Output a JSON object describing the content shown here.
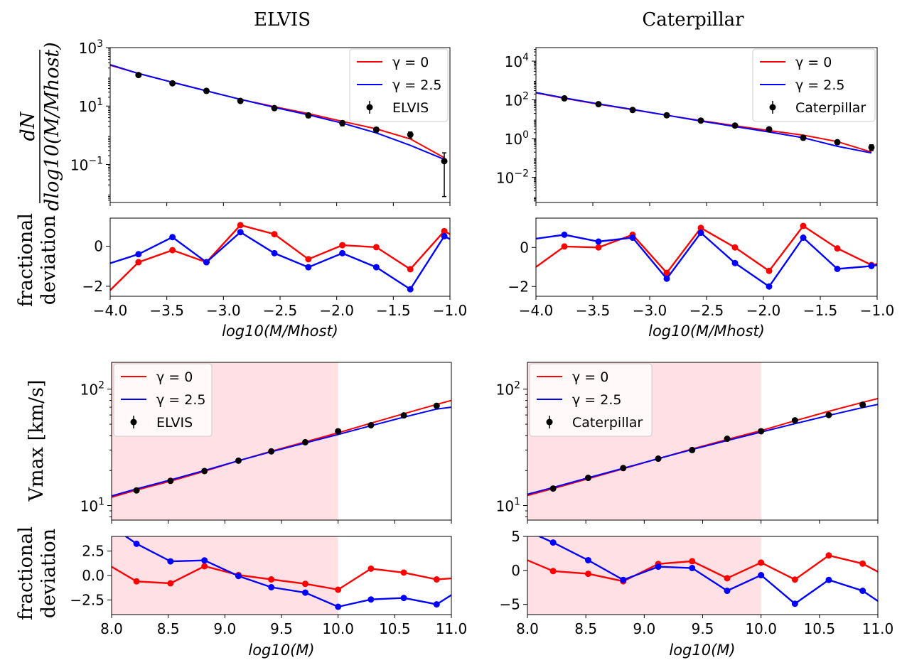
{
  "titles": {
    "left": "ELVIS",
    "right": "Caterpillar"
  },
  "ylabels": {
    "hmf_num": "dN",
    "hmf_den": "dlog10(M/Mhost)",
    "frac_top": "fractional",
    "frac_bottom": "deviation",
    "vmax": "Vmax [km/s]"
  },
  "xlabels": {
    "hmf": "log10(M/Mhost)",
    "vmax": "log10(M)"
  },
  "colors": {
    "gamma0": "#ff0000",
    "gamma25": "#0000ff",
    "data": "#000000",
    "shade": "#ffe0e4"
  },
  "chart_data": [
    {
      "id": "elvis_hmf",
      "type": "line",
      "yscale": "log",
      "xlim": [
        -4.0,
        -1.0
      ],
      "ylim": [
        0.005,
        1000
      ],
      "yticks": [
        "10^3",
        "10^1",
        "10^-1"
      ],
      "legend": "top-right",
      "legend_entries": [
        "γ = 0",
        "γ = 2.5",
        "ELVIS"
      ],
      "x": [
        -4.0,
        -3.75,
        -3.45,
        -3.15,
        -2.85,
        -2.55,
        -2.25,
        -1.95,
        -1.65,
        -1.35,
        -1.05
      ],
      "series": [
        {
          "name": "γ = 0",
          "values": [
            250,
            130,
            65,
            33,
            17,
            9.5,
            5.5,
            3.0,
            1.65,
            0.75,
            0.17
          ]
        },
        {
          "name": "γ = 2.5",
          "values": [
            260,
            130,
            65,
            33,
            17,
            9.0,
            5.0,
            2.6,
            1.2,
            0.45,
            0.15
          ]
        }
      ],
      "points": {
        "name": "ELVIS",
        "x": [
          -3.75,
          -3.45,
          -3.15,
          -2.85,
          -2.55,
          -2.25,
          -1.95,
          -1.65,
          -1.35,
          -1.05
        ],
        "y": [
          115,
          60,
          33,
          15,
          8.5,
          4.8,
          2.6,
          1.55,
          1.05,
          0.13
        ],
        "err_lo": [
          100,
          52,
          28,
          13,
          7.3,
          4.0,
          2.1,
          1.25,
          0.8,
          0.008
        ],
        "err_hi": [
          130,
          68,
          38,
          17,
          9.7,
          5.6,
          3.1,
          1.85,
          1.3,
          0.25
        ]
      }
    },
    {
      "id": "cater_hmf",
      "type": "line",
      "yscale": "log",
      "xlim": [
        -4.0,
        -1.0
      ],
      "ylim": [
        0.0005,
        50000
      ],
      "yticks": [
        "10^4",
        "10^2",
        "10^0",
        "10^-2"
      ],
      "legend": "top-right",
      "legend_entries": [
        "γ = 0",
        "γ = 2.5",
        "Caterpillar"
      ],
      "x": [
        -4.0,
        -3.75,
        -3.45,
        -3.15,
        -2.85,
        -2.55,
        -2.25,
        -1.95,
        -1.65,
        -1.35,
        -1.05
      ],
      "series": [
        {
          "name": "γ = 0",
          "values": [
            230,
            120,
            60,
            31,
            16,
            8.5,
            4.6,
            2.6,
            1.5,
            0.7,
            0.2
          ]
        },
        {
          "name": "γ = 2.5",
          "values": [
            240,
            125,
            62,
            32,
            16,
            8.0,
            4.2,
            2.2,
            1.1,
            0.4,
            0.18
          ]
        }
      ],
      "points": {
        "name": "Caterpillar",
        "x": [
          -3.75,
          -3.45,
          -3.15,
          -2.85,
          -2.55,
          -2.25,
          -1.95,
          -1.65,
          -1.35,
          -1.05
        ],
        "y": [
          120,
          60,
          30,
          16,
          8.5,
          4.7,
          3.0,
          1.1,
          0.65,
          0.35
        ],
        "err_lo": [
          110,
          55,
          27,
          14.5,
          7.6,
          4.1,
          2.5,
          0.85,
          0.5,
          0.24
        ],
        "err_hi": [
          130,
          66,
          33,
          17.5,
          9.4,
          5.3,
          3.5,
          1.35,
          0.8,
          0.48
        ]
      }
    },
    {
      "id": "elvis_hmf_dev",
      "type": "line",
      "yscale": "linear",
      "xlim": [
        -4.0,
        -1.0
      ],
      "ylim": [
        -2.5,
        1.4
      ],
      "yticks": [
        0,
        -2
      ],
      "xticks": [
        "−4.0",
        "−3.5",
        "−3.0",
        "−2.5",
        "−2.0",
        "−1.5",
        "−1.0"
      ],
      "xtick_values": [
        -4.0,
        -3.5,
        -3.0,
        -2.5,
        -2.0,
        -1.5,
        -1.0
      ],
      "x": [
        -4.0,
        -3.75,
        -3.45,
        -3.15,
        -2.85,
        -2.55,
        -2.25,
        -1.95,
        -1.65,
        -1.35,
        -1.05,
        -1.0
      ],
      "series": [
        {
          "name": "γ = 0",
          "values": [
            -2.2,
            -0.8,
            -0.2,
            -0.8,
            1.05,
            0.6,
            -0.65,
            0.05,
            -0.05,
            -1.15,
            0.75,
            0.6
          ],
          "markers": [
            false,
            true,
            true,
            true,
            true,
            true,
            true,
            true,
            true,
            true,
            true,
            false
          ]
        },
        {
          "name": "γ = 2.5",
          "values": [
            -0.85,
            -0.4,
            0.45,
            -0.8,
            0.7,
            -0.35,
            -1.05,
            -0.35,
            -1.05,
            -2.15,
            0.5,
            0.35
          ],
          "markers": [
            false,
            true,
            true,
            true,
            true,
            true,
            true,
            true,
            true,
            true,
            true,
            false
          ]
        }
      ]
    },
    {
      "id": "cater_hmf_dev",
      "type": "line",
      "yscale": "linear",
      "xlim": [
        -4.0,
        -1.0
      ],
      "ylim": [
        -2.5,
        1.5
      ],
      "yticks": [
        0,
        -2
      ],
      "xticks": [
        "−4.0",
        "−3.5",
        "−3.0",
        "−2.5",
        "−2.0",
        "−1.5",
        "−1.0"
      ],
      "xtick_values": [
        -4.0,
        -3.5,
        -3.0,
        -2.5,
        -2.0,
        -1.5,
        -1.0
      ],
      "x": [
        -4.0,
        -3.75,
        -3.45,
        -3.15,
        -2.85,
        -2.55,
        -2.25,
        -1.95,
        -1.65,
        -1.35,
        -1.05,
        -1.0
      ],
      "series": [
        {
          "name": "γ = 0",
          "values": [
            -1.0,
            0.05,
            0.0,
            0.65,
            -1.3,
            1.0,
            0.0,
            -1.2,
            1.1,
            -0.05,
            -0.9,
            -0.85
          ],
          "markers": [
            false,
            true,
            true,
            true,
            true,
            true,
            true,
            true,
            true,
            true,
            true,
            false
          ]
        },
        {
          "name": "γ = 2.5",
          "values": [
            0.45,
            0.65,
            0.3,
            0.5,
            -1.6,
            0.75,
            -0.8,
            -2.0,
            0.5,
            -1.1,
            -0.95,
            -0.9
          ],
          "markers": [
            false,
            true,
            true,
            true,
            true,
            true,
            true,
            true,
            true,
            true,
            true,
            false
          ]
        }
      ]
    },
    {
      "id": "elvis_vmax",
      "type": "line",
      "yscale": "log",
      "xlim": [
        8.0,
        11.0
      ],
      "ylim": [
        7.5,
        170
      ],
      "yticks": [
        "10^2",
        "10^1"
      ],
      "shade_x": [
        8.0,
        10.0
      ],
      "legend": "top-left",
      "legend_entries": [
        "γ = 0",
        "γ = 2.5",
        "ELVIS"
      ],
      "x": [
        8.0,
        8.22,
        8.52,
        8.82,
        9.12,
        9.41,
        9.71,
        10.0,
        10.29,
        10.58,
        10.87,
        11.0
      ],
      "series": [
        {
          "name": "γ = 0",
          "values": [
            11.8,
            13.6,
            16.2,
            19.7,
            24.3,
            29.3,
            35.2,
            42.2,
            51.0,
            61.5,
            74.0,
            80.0
          ]
        },
        {
          "name": "γ = 2.5",
          "values": [
            12.1,
            13.9,
            16.6,
            20.0,
            24.3,
            29.0,
            34.5,
            40.8,
            48.5,
            57.5,
            67.5,
            70.0
          ]
        }
      ],
      "points": {
        "name": "ELVIS",
        "x": [
          8.22,
          8.52,
          8.82,
          9.12,
          9.41,
          9.71,
          10.0,
          10.29,
          10.58,
          10.87
        ],
        "y": [
          13.5,
          16.3,
          19.8,
          24.3,
          29.2,
          35.0,
          43.5,
          49.0,
          59.5,
          72.0
        ]
      }
    },
    {
      "id": "cater_vmax",
      "type": "line",
      "yscale": "log",
      "xlim": [
        8.0,
        11.0
      ],
      "ylim": [
        7.5,
        170
      ],
      "yticks": [
        "10^2",
        "10^1"
      ],
      "shade_x": [
        8.0,
        10.0
      ],
      "legend": "top-left",
      "legend_entries": [
        "γ = 0",
        "γ = 2.5",
        "Caterpillar"
      ],
      "x": [
        8.0,
        8.22,
        8.52,
        8.82,
        9.12,
        9.41,
        9.71,
        10.0,
        10.29,
        10.58,
        10.87,
        11.0
      ],
      "series": [
        {
          "name": "γ = 0",
          "values": [
            12.2,
            14.0,
            17.0,
            20.7,
            25.3,
            30.6,
            37.0,
            44.0,
            53.5,
            64.5,
            77.0,
            83.0
          ]
        },
        {
          "name": "γ = 2.5",
          "values": [
            12.5,
            14.3,
            17.3,
            20.9,
            25.3,
            30.3,
            36.2,
            42.8,
            50.5,
            59.5,
            69.5,
            74.0
          ]
        }
      ],
      "points": {
        "name": "Caterpillar",
        "x": [
          8.22,
          8.52,
          8.82,
          9.12,
          9.41,
          9.71,
          10.0,
          10.29,
          10.58,
          10.87
        ],
        "y": [
          14.0,
          17.3,
          21.0,
          25.3,
          30.0,
          37.5,
          43.5,
          54.0,
          60.0,
          73.5
        ]
      }
    },
    {
      "id": "elvis_vmax_dev",
      "type": "line",
      "yscale": "linear",
      "xlim": [
        8.0,
        11.0
      ],
      "ylim": [
        -4.0,
        4.0
      ],
      "yticks": [
        2.5,
        0.0,
        -2.5
      ],
      "ytick_labels": [
        "2.5",
        "0.0",
        "−2.5"
      ],
      "shade_x": [
        8.0,
        10.0
      ],
      "xticks": [
        "8.0",
        "8.5",
        "9.0",
        "9.5",
        "10.0",
        "10.5",
        "11.0"
      ],
      "xtick_values": [
        8.0,
        8.5,
        9.0,
        9.5,
        10.0,
        10.5,
        11.0
      ],
      "x": [
        8.0,
        8.22,
        8.52,
        8.82,
        9.12,
        9.41,
        9.71,
        10.0,
        10.29,
        10.58,
        10.87,
        11.0
      ],
      "series": [
        {
          "name": "γ = 0",
          "values": [
            0.9,
            -0.6,
            -0.8,
            0.95,
            0.05,
            -0.4,
            -0.85,
            -1.45,
            0.7,
            0.3,
            -0.4,
            -0.3
          ],
          "markers": [
            false,
            true,
            true,
            true,
            true,
            true,
            true,
            true,
            true,
            true,
            true,
            false
          ]
        },
        {
          "name": "γ = 2.5",
          "values": [
            5.0,
            3.25,
            1.45,
            1.55,
            -0.05,
            -1.2,
            -1.75,
            -3.2,
            -2.45,
            -2.3,
            -2.95,
            -2.0
          ],
          "markers": [
            false,
            true,
            true,
            true,
            true,
            true,
            true,
            true,
            true,
            true,
            true,
            false
          ]
        }
      ]
    },
    {
      "id": "cater_vmax_dev",
      "type": "line",
      "yscale": "linear",
      "xlim": [
        8.0,
        11.0
      ],
      "ylim": [
        -6.5,
        5.0
      ],
      "yticks": [
        5,
        0,
        -5
      ],
      "ytick_labels": [
        "5",
        "0",
        "−5"
      ],
      "shade_x": [
        8.0,
        10.0
      ],
      "xticks": [
        "8.0",
        "8.5",
        "9.0",
        "9.5",
        "10.0",
        "10.5",
        "11.0"
      ],
      "xtick_values": [
        8.0,
        8.5,
        9.0,
        9.5,
        10.0,
        10.5,
        11.0
      ],
      "x": [
        8.0,
        8.22,
        8.52,
        8.82,
        9.12,
        9.41,
        9.71,
        10.0,
        10.29,
        10.58,
        10.87,
        11.0
      ],
      "series": [
        {
          "name": "γ = 0",
          "values": [
            1.5,
            -0.1,
            -0.5,
            -1.6,
            0.95,
            1.35,
            -1.15,
            1.15,
            -1.35,
            2.2,
            1.0,
            -0.2
          ],
          "markers": [
            false,
            true,
            true,
            true,
            true,
            true,
            true,
            true,
            true,
            true,
            true,
            false
          ]
        },
        {
          "name": "γ = 2.5",
          "values": [
            5.8,
            4.1,
            1.5,
            -1.4,
            0.55,
            0.35,
            -3.0,
            -0.7,
            -4.9,
            -1.4,
            -3.0,
            -4.5
          ],
          "markers": [
            false,
            true,
            true,
            true,
            true,
            true,
            true,
            true,
            true,
            true,
            true,
            false
          ]
        }
      ]
    }
  ]
}
